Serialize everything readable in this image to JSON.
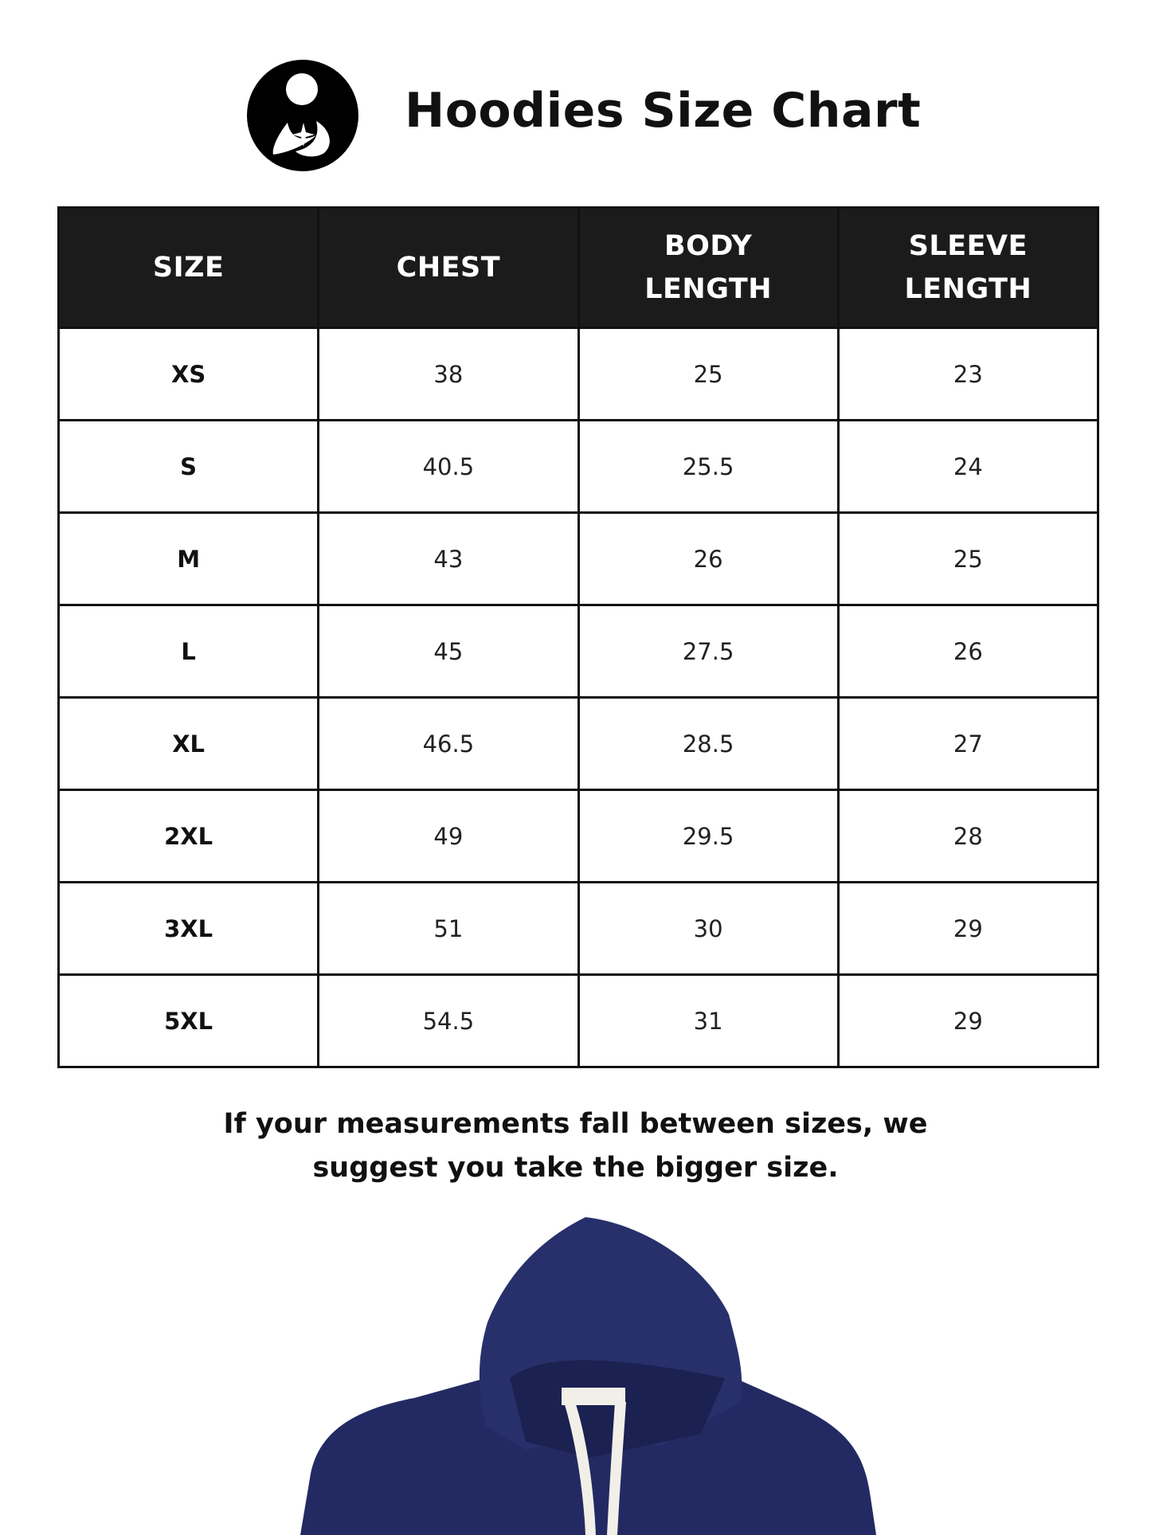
{
  "header": {
    "title": "Hoodies Size Chart",
    "logo_icon": "mother-child-logo-icon"
  },
  "table": {
    "columns": [
      "SIZE",
      "CHEST",
      "BODY LENGTH",
      "SLEEVE LENGTH"
    ],
    "rows": [
      [
        "XS",
        "38",
        "25",
        "23"
      ],
      [
        "S",
        "40.5",
        "25.5",
        "24"
      ],
      [
        "M",
        "43",
        "26",
        "25"
      ],
      [
        "L",
        "45",
        "27.5",
        "26"
      ],
      [
        "XL",
        "46.5",
        "28.5",
        "27"
      ],
      [
        "2XL",
        "49",
        "29.5",
        "28"
      ],
      [
        "3XL",
        "51",
        "30",
        "29"
      ],
      [
        "5XL",
        "54.5",
        "31",
        "29"
      ]
    ]
  },
  "note": {
    "line1": "If your measurements fall between sizes, we",
    "line2": "suggest you take the bigger size."
  },
  "colors": {
    "header_bg": "#1b1b1b",
    "hoodie": "#232a63",
    "drawstring": "#f2efe8"
  }
}
